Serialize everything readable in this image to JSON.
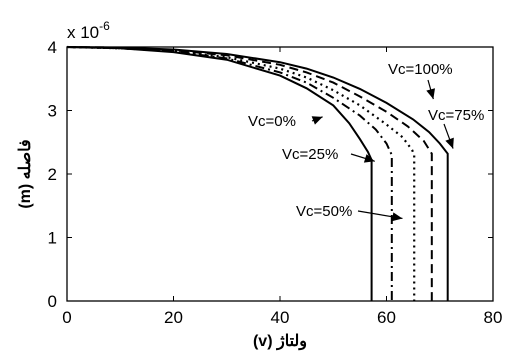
{
  "chart_data": {
    "type": "line",
    "xlabel": "ولتاژ (v)",
    "ylabel": "فاصله (m)",
    "y_multiplier": "x 10",
    "y_multiplier_exponent": "-6",
    "xlim": [
      0,
      80
    ],
    "ylim": [
      0,
      4
    ],
    "xticks": [
      "0",
      "20",
      "40",
      "60",
      "80"
    ],
    "yticks": [
      "0",
      "1",
      "2",
      "3",
      "4"
    ],
    "grid": false,
    "series": [
      {
        "name": "Vc=0%",
        "style": "solid",
        "x": [
          0,
          10,
          20,
          30,
          40,
          45,
          50,
          53,
          55,
          56.5,
          57.2,
          57.2
        ],
        "y": [
          4.0,
          3.98,
          3.92,
          3.8,
          3.55,
          3.35,
          3.08,
          2.8,
          2.55,
          2.35,
          2.22,
          0
        ]
      },
      {
        "name": "Vc=25%",
        "style": "dashdot",
        "x": [
          0,
          10,
          20,
          30,
          40,
          45,
          50,
          55,
          58,
          60,
          61,
          61
        ],
        "y": [
          4.0,
          3.98,
          3.93,
          3.82,
          3.6,
          3.44,
          3.2,
          2.92,
          2.7,
          2.48,
          2.3,
          0
        ]
      },
      {
        "name": "Vc=50%",
        "style": "dotted",
        "x": [
          0,
          10,
          20,
          30,
          40,
          45,
          50,
          55,
          60,
          63,
          64.8,
          65.2,
          65.2
        ],
        "y": [
          4.0,
          3.98,
          3.94,
          3.84,
          3.66,
          3.52,
          3.32,
          3.08,
          2.78,
          2.58,
          2.38,
          2.3,
          0
        ]
      },
      {
        "name": "Vc=75%",
        "style": "dashed",
        "x": [
          0,
          10,
          20,
          30,
          40,
          45,
          50,
          55,
          60,
          64,
          67,
          68.5,
          68.5
        ],
        "y": [
          4.0,
          3.99,
          3.95,
          3.87,
          3.72,
          3.6,
          3.44,
          3.22,
          2.98,
          2.75,
          2.52,
          2.32,
          0
        ]
      },
      {
        "name": "Vc=100%",
        "style": "solid",
        "x": [
          0,
          10,
          20,
          30,
          40,
          45,
          50,
          55,
          60,
          65,
          68,
          70,
          71.5,
          71.5
        ],
        "y": [
          4.0,
          3.99,
          3.96,
          3.89,
          3.76,
          3.66,
          3.52,
          3.34,
          3.12,
          2.86,
          2.66,
          2.48,
          2.32,
          0
        ]
      }
    ],
    "annotations": [
      {
        "label": "Vc=100%",
        "arrow_x": 68.8,
        "arrow_y": 3.18
      },
      {
        "label": "Vc=75%",
        "arrow_x": 72.5,
        "arrow_y": 2.4
      },
      {
        "label": "Vc=0%",
        "arrow_x": 48,
        "arrow_y": 2.9
      },
      {
        "label": "Vc=25%",
        "arrow_x": 57.8,
        "arrow_y": 2.2
      },
      {
        "label": "Vc=50%",
        "arrow_x": 63,
        "arrow_y": 1.3
      }
    ]
  }
}
